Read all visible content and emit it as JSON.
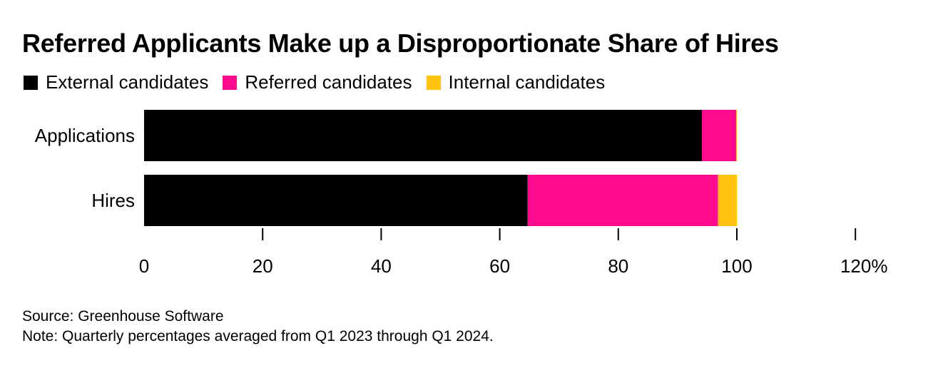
{
  "chart_data": {
    "type": "bar",
    "orientation": "horizontal",
    "stacked": true,
    "title": "Referred Applicants Make up a Disproportionate Share of Hires",
    "categories": [
      "Applications",
      "Hires"
    ],
    "series": [
      {
        "name": "External candidates",
        "color": "#000000",
        "values": [
          94.1,
          64.7
        ]
      },
      {
        "name": "Referred candidates",
        "color": "#FF0A8C",
        "values": [
          5.8,
          32.1
        ]
      },
      {
        "name": "Internal candidates",
        "color": "#FFC20E",
        "values": [
          0.1,
          3.2
        ]
      }
    ],
    "xlim": [
      0,
      120
    ],
    "xticks": [
      0,
      20,
      40,
      60,
      80,
      100,
      120
    ],
    "xtick_labels": [
      "0",
      "20",
      "40",
      "60",
      "80",
      "100",
      "120%"
    ],
    "legend_position": "top-left"
  },
  "footer": {
    "source": "Source: Greenhouse Software",
    "note": "Note: Quarterly percentages averaged from Q1 2023 through Q1 2024."
  }
}
